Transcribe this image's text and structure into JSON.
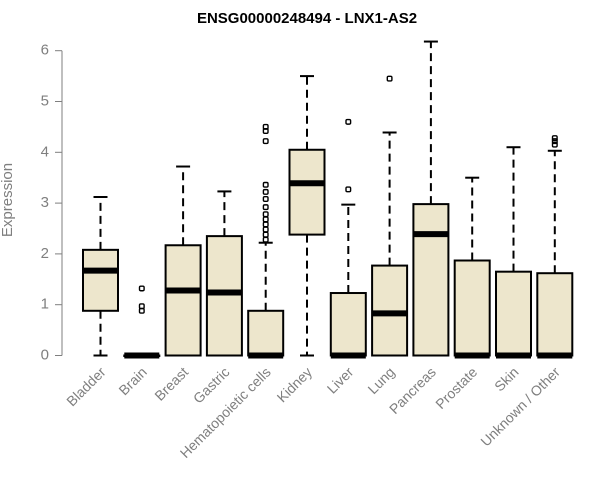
{
  "chart_data": {
    "type": "boxplot",
    "title": "ENSG00000248494 - LNX1-AS2",
    "xlabel": "",
    "ylabel": "Expression",
    "ylim": [
      0,
      6.2
    ],
    "yticks": [
      0,
      1,
      2,
      3,
      4,
      5,
      6
    ],
    "grid": false,
    "box_fill": "#ede6cc",
    "categories": [
      "Bladder",
      "Brain",
      "Breast",
      "Gastric",
      "Hematopoietic cells",
      "Kidney",
      "Liver",
      "Lung",
      "Pancreas",
      "Prostate",
      "Skin",
      "Unknown / Other"
    ],
    "boxes": [
      {
        "label": "Bladder",
        "min": 0,
        "q1": 0.88,
        "median": 1.67,
        "q3": 2.08,
        "max": 3.12,
        "outliers": []
      },
      {
        "label": "Brain",
        "min": 0,
        "q1": 0,
        "median": 0,
        "q3": 0,
        "max": 0,
        "outliers": [
          0.88,
          0.97,
          1.32
        ]
      },
      {
        "label": "Breast",
        "min": 0,
        "q1": 0,
        "median": 1.28,
        "q3": 2.17,
        "max": 3.72,
        "outliers": []
      },
      {
        "label": "Gastric",
        "min": 0,
        "q1": 0,
        "median": 1.24,
        "q3": 2.35,
        "max": 3.23,
        "outliers": []
      },
      {
        "label": "Hematopoietic cells",
        "min": 0,
        "q1": 0,
        "median": 0,
        "q3": 0.88,
        "max": 2.22,
        "outliers": [
          2.28,
          2.38,
          2.48,
          2.58,
          2.68,
          2.78,
          2.92,
          3.08,
          3.22,
          3.36,
          4.22,
          4.42,
          4.5
        ]
      },
      {
        "label": "Kidney",
        "min": 0,
        "q1": 2.38,
        "median": 3.39,
        "q3": 4.05,
        "max": 5.5,
        "outliers": []
      },
      {
        "label": "Liver",
        "min": 0,
        "q1": 0,
        "median": 0,
        "q3": 1.23,
        "max": 2.97,
        "outliers": [
          3.27,
          4.6
        ]
      },
      {
        "label": "Lung",
        "min": 0,
        "q1": 0,
        "median": 0.83,
        "q3": 1.77,
        "max": 4.39,
        "outliers": [
          5.45
        ]
      },
      {
        "label": "Pancreas",
        "min": 0,
        "q1": 0,
        "median": 2.39,
        "q3": 2.98,
        "max": 6.18,
        "outliers": []
      },
      {
        "label": "Prostate",
        "min": 0,
        "q1": 0,
        "median": 0,
        "q3": 1.87,
        "max": 3.5,
        "outliers": []
      },
      {
        "label": "Skin",
        "min": 0,
        "q1": 0,
        "median": 0,
        "q3": 1.65,
        "max": 4.1,
        "outliers": []
      },
      {
        "label": "Unknown / Other",
        "min": 0,
        "q1": 0,
        "median": 0,
        "q3": 1.62,
        "max": 4.03,
        "outliers": [
          4.15,
          4.22,
          4.28
        ]
      }
    ]
  }
}
